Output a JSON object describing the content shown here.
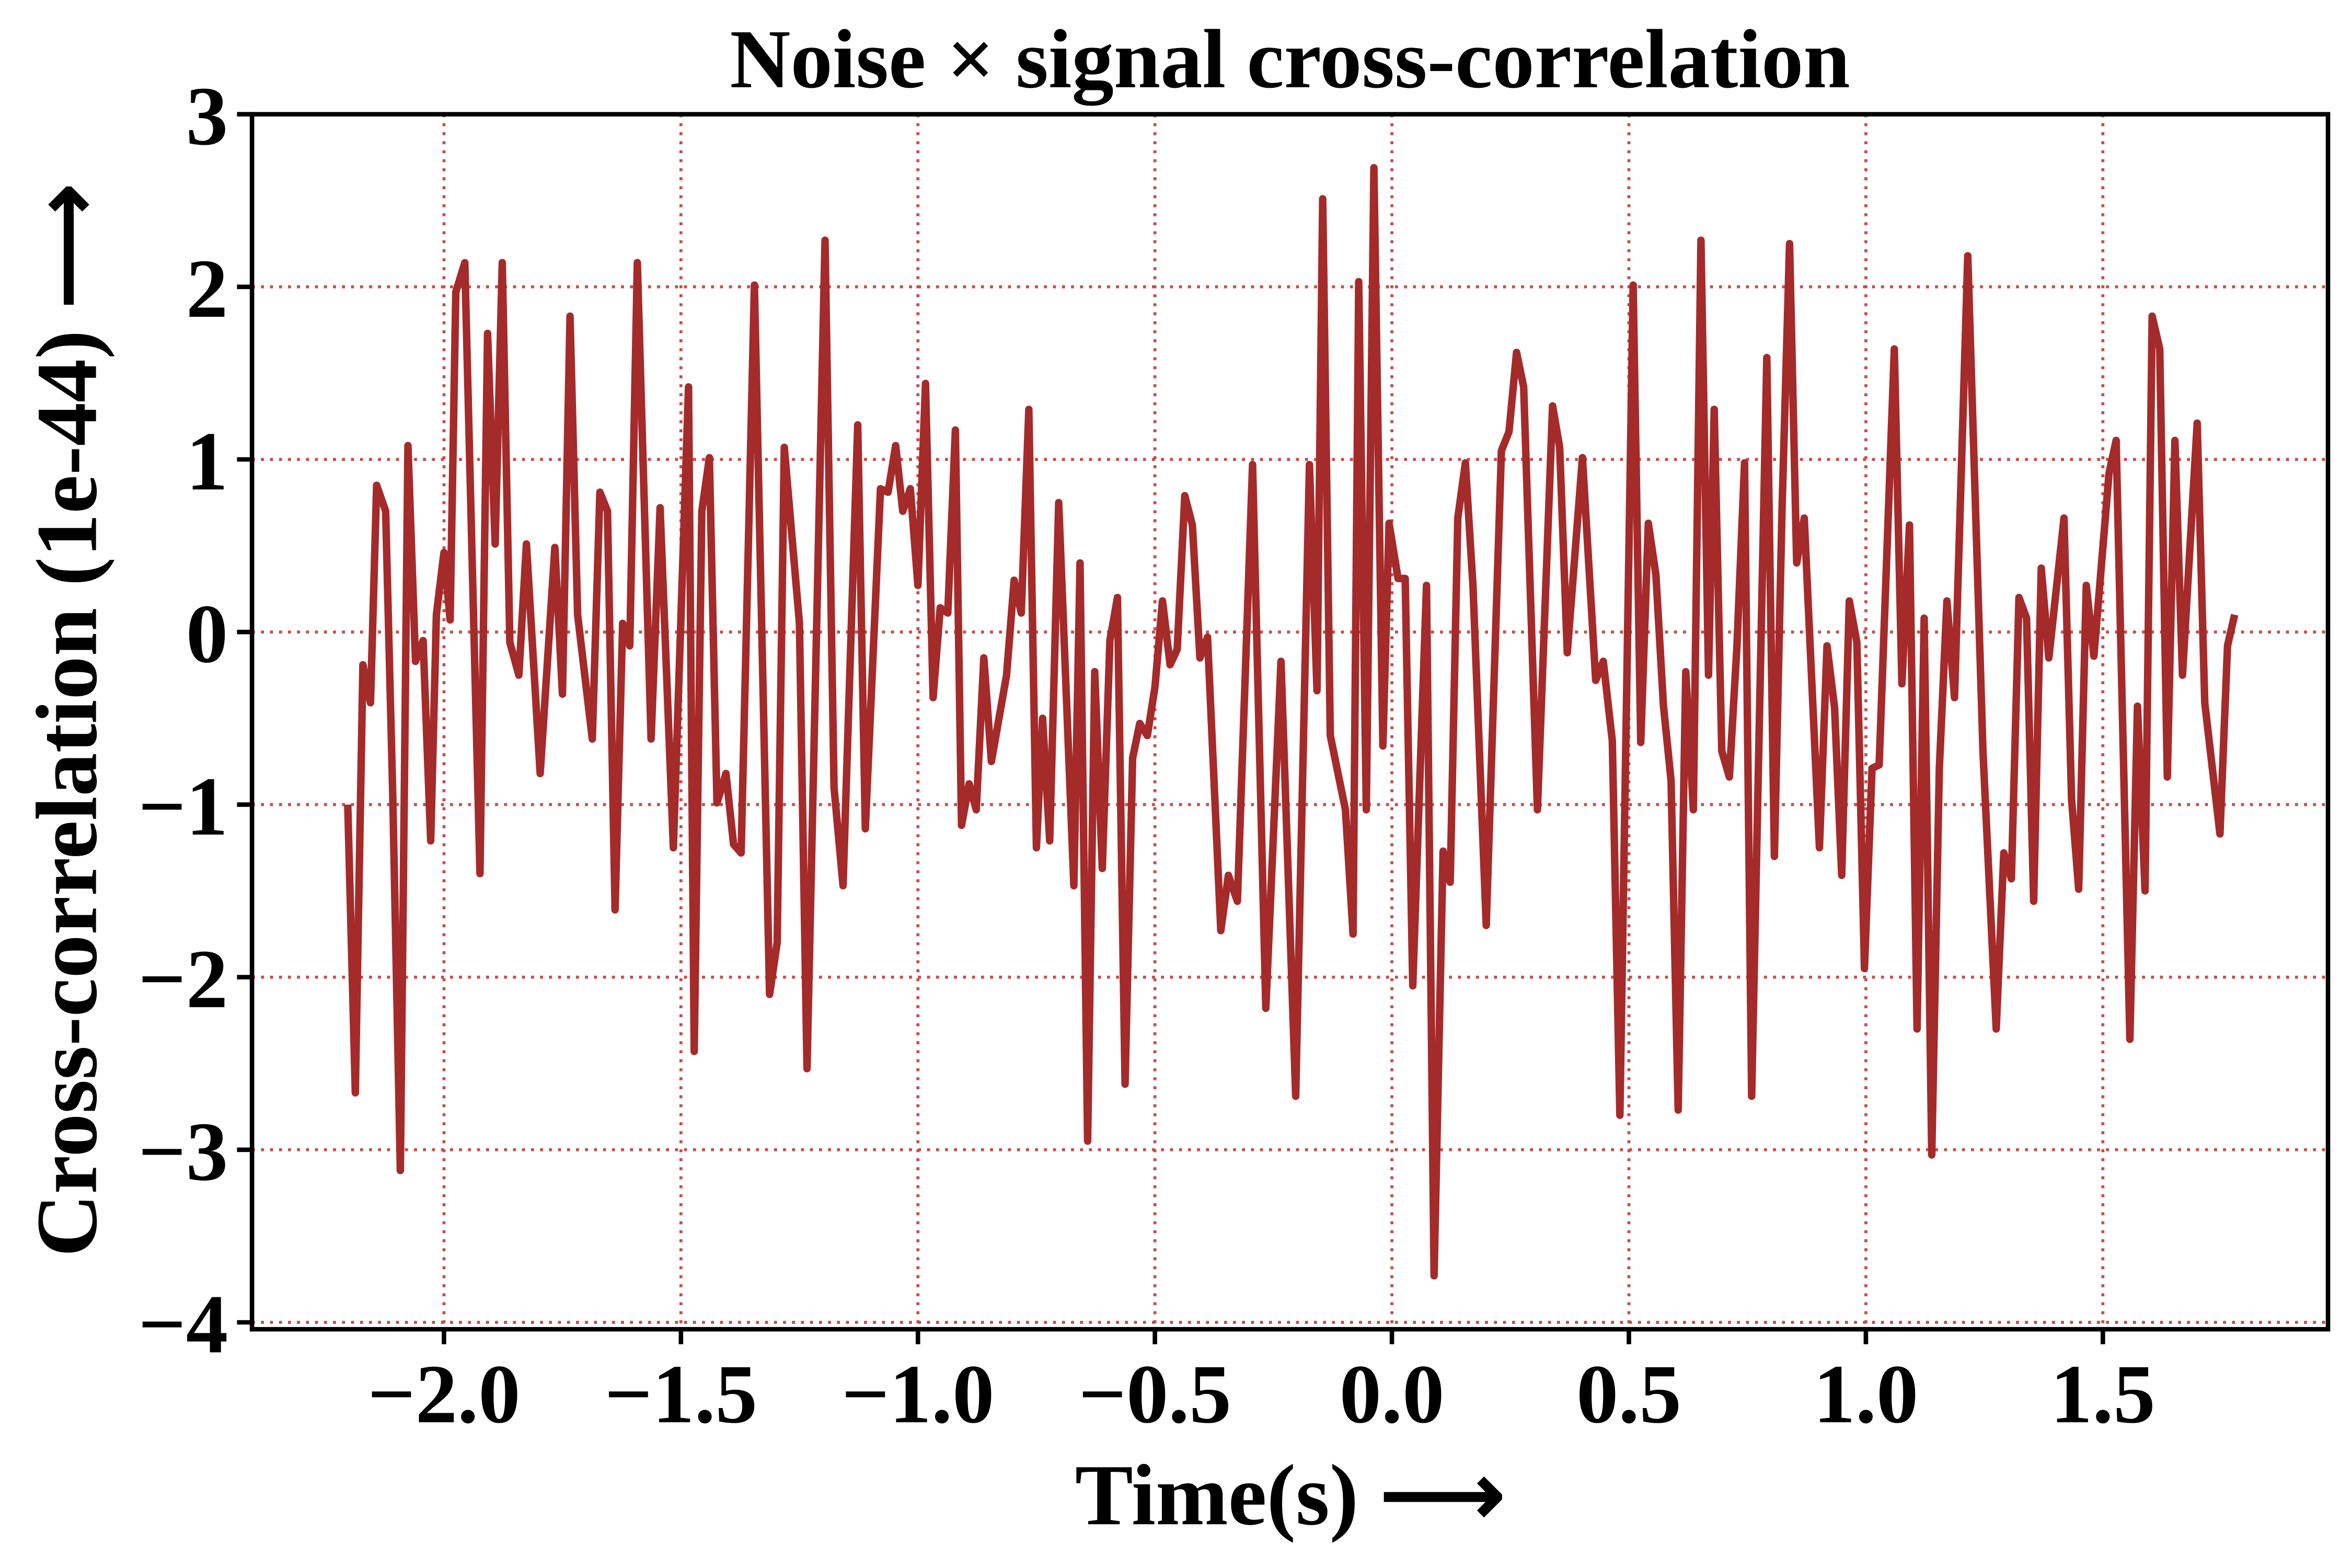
{
  "chart_data": {
    "type": "line",
    "title": "Noise × signal cross-correlation",
    "x_label": "Time(s)  ⟶",
    "y_label": "Cross-correlation (1e-44)  ⟶",
    "xlim": [
      -2.405,
      1.975
    ],
    "ylim": [
      -4.04,
      3.0
    ],
    "xticks": [
      {
        "value": -2.0,
        "label": "−2.0"
      },
      {
        "value": -1.5,
        "label": "−1.5"
      },
      {
        "value": -1.0,
        "label": "−1.0"
      },
      {
        "value": -0.5,
        "label": "−0.5"
      },
      {
        "value": 0.0,
        "label": "0.0"
      },
      {
        "value": 0.5,
        "label": "0.5"
      },
      {
        "value": 1.0,
        "label": "1.0"
      },
      {
        "value": 1.5,
        "label": "1.5"
      }
    ],
    "yticks": [
      {
        "value": -4,
        "label": "−4"
      },
      {
        "value": -3,
        "label": "−3"
      },
      {
        "value": -2,
        "label": "−2"
      },
      {
        "value": -1,
        "label": "−1"
      },
      0,
      1,
      2,
      3
    ],
    "grid": true,
    "x": [
      -2.203,
      -2.187,
      -2.171,
      -2.155,
      -2.142,
      -2.123,
      -2.108,
      -2.092,
      -2.076,
      -2.06,
      -2.044,
      -2.028,
      -2.016,
      -2.0,
      -1.987,
      -1.975,
      -1.956,
      -1.94,
      -1.924,
      -1.908,
      -1.892,
      -1.877,
      -1.861,
      -1.842,
      -1.826,
      -1.797,
      -1.766,
      -1.75,
      -1.734,
      -1.718,
      -1.687,
      -1.671,
      -1.655,
      -1.639,
      -1.623,
      -1.608,
      -1.592,
      -1.563,
      -1.544,
      -1.516,
      -1.484,
      -1.472,
      -1.456,
      -1.44,
      -1.424,
      -1.405,
      -1.389,
      -1.373,
      -1.345,
      -1.313,
      -1.297,
      -1.282,
      -1.25,
      -1.234,
      -1.196,
      -1.177,
      -1.158,
      -1.127,
      -1.111,
      -1.079,
      -1.063,
      -1.047,
      -1.032,
      -1.016,
      -1.0,
      -0.984,
      -0.968,
      -0.953,
      -0.937,
      -0.921,
      -0.908,
      -0.892,
      -0.877,
      -0.861,
      -0.845,
      -0.813,
      -0.797,
      -0.782,
      -0.766,
      -0.75,
      -0.737,
      -0.722,
      -0.703,
      -0.671,
      -0.658,
      -0.642,
      -0.627,
      -0.611,
      -0.595,
      -0.579,
      -0.563,
      -0.547,
      -0.532,
      -0.516,
      -0.5,
      -0.484,
      -0.468,
      -0.453,
      -0.437,
      -0.421,
      -0.405,
      -0.389,
      -0.361,
      -0.345,
      -0.326,
      -0.294,
      -0.266,
      -0.234,
      -0.203,
      -0.174,
      -0.158,
      -0.146,
      -0.13,
      -0.098,
      -0.082,
      -0.07,
      -0.054,
      -0.038,
      -0.019,
      -0.006,
      0.013,
      0.028,
      0.044,
      0.073,
      0.089,
      0.108,
      0.123,
      0.139,
      0.155,
      0.171,
      0.199,
      0.231,
      0.247,
      0.263,
      0.278,
      0.307,
      0.339,
      0.354,
      0.37,
      0.402,
      0.43,
      0.446,
      0.465,
      0.481,
      0.509,
      0.525,
      0.541,
      0.557,
      0.573,
      0.589,
      0.604,
      0.62,
      0.636,
      0.652,
      0.668,
      0.68,
      0.696,
      0.712,
      0.728,
      0.744,
      0.759,
      0.791,
      0.807,
      0.823,
      0.839,
      0.854,
      0.87,
      0.902,
      0.918,
      0.934,
      0.949,
      0.965,
      0.981,
      0.997,
      1.013,
      1.028,
      1.06,
      1.076,
      1.092,
      1.108,
      1.123,
      1.139,
      1.155,
      1.171,
      1.187,
      1.215,
      1.247,
      1.275,
      1.291,
      1.307,
      1.323,
      1.339,
      1.354,
      1.37,
      1.386,
      1.418,
      1.434,
      1.449,
      1.465,
      1.481,
      1.513,
      1.528,
      1.557,
      1.573,
      1.589,
      1.604,
      1.62,
      1.636,
      1.652,
      1.668,
      1.699,
      1.715,
      1.747,
      1.763,
      1.778
    ],
    "series": [
      {
        "color": "#a52a2a",
        "values": [
          -1.0,
          -2.67,
          -0.19,
          -0.41,
          0.85,
          0.7,
          -0.95,
          -3.12,
          1.08,
          -0.17,
          -0.05,
          -1.21,
          0.1,
          0.46,
          0.07,
          1.97,
          2.14,
          0.36,
          -1.4,
          1.73,
          0.51,
          2.14,
          -0.06,
          -0.25,
          0.51,
          -0.82,
          0.49,
          -0.36,
          1.83,
          0.1,
          -0.62,
          0.81,
          0.7,
          -1.61,
          0.05,
          -0.08,
          2.14,
          -0.62,
          0.72,
          -1.25,
          1.42,
          -2.43,
          0.7,
          1.01,
          -0.99,
          -0.82,
          -1.23,
          -1.28,
          2.01,
          -2.1,
          -1.8,
          1.07,
          0.05,
          -2.53,
          2.27,
          -0.9,
          -1.47,
          1.2,
          -1.14,
          0.83,
          0.81,
          1.08,
          0.7,
          0.83,
          0.27,
          1.44,
          -0.38,
          0.14,
          0.11,
          1.17,
          -1.12,
          -0.88,
          -1.03,
          -0.15,
          -0.75,
          -0.25,
          0.3,
          0.11,
          1.29,
          -1.25,
          -0.5,
          -1.21,
          0.75,
          -1.47,
          0.4,
          -2.95,
          -0.23,
          -1.37,
          -0.05,
          0.2,
          -2.62,
          -0.73,
          -0.53,
          -0.6,
          -0.32,
          0.18,
          -0.19,
          -0.1,
          0.79,
          0.62,
          -0.15,
          -0.03,
          -1.73,
          -1.41,
          -1.56,
          0.97,
          -2.18,
          -0.17,
          -2.69,
          0.97,
          -0.34,
          2.51,
          -0.6,
          -1.03,
          -1.75,
          2.03,
          -1.03,
          2.69,
          -0.66,
          0.63,
          0.31,
          0.31,
          -2.05,
          0.27,
          -3.73,
          -1.27,
          -1.45,
          0.66,
          0.98,
          0.27,
          -1.7,
          1.05,
          1.16,
          1.62,
          1.42,
          -1.03,
          1.31,
          1.07,
          -0.12,
          1.01,
          -0.28,
          -0.17,
          -0.63,
          -2.8,
          2.01,
          -0.64,
          0.63,
          0.33,
          -0.43,
          -0.86,
          -2.77,
          -0.23,
          -1.03,
          2.27,
          -0.25,
          1.29,
          -0.69,
          -0.84,
          -0.08,
          0.98,
          -2.69,
          1.59,
          -1.3,
          0.7,
          2.25,
          0.4,
          0.66,
          -1.25,
          -0.08,
          -0.44,
          -1.41,
          0.18,
          -0.06,
          -1.95,
          -0.79,
          -0.77,
          1.64,
          -0.3,
          0.62,
          -2.3,
          0.08,
          -3.03,
          -0.79,
          0.18,
          -0.38,
          2.18,
          -0.69,
          -2.3,
          -1.28,
          -1.43,
          0.2,
          0.08,
          -1.56,
          0.37,
          -0.15,
          0.66,
          -0.97,
          -1.49,
          0.27,
          -0.14,
          0.92,
          1.11,
          -2.36,
          -0.43,
          -1.5,
          1.83,
          1.64,
          -0.84,
          1.11,
          -0.25,
          1.21,
          -0.41,
          -1.17,
          -0.08,
          0.1
        ]
      }
    ]
  }
}
